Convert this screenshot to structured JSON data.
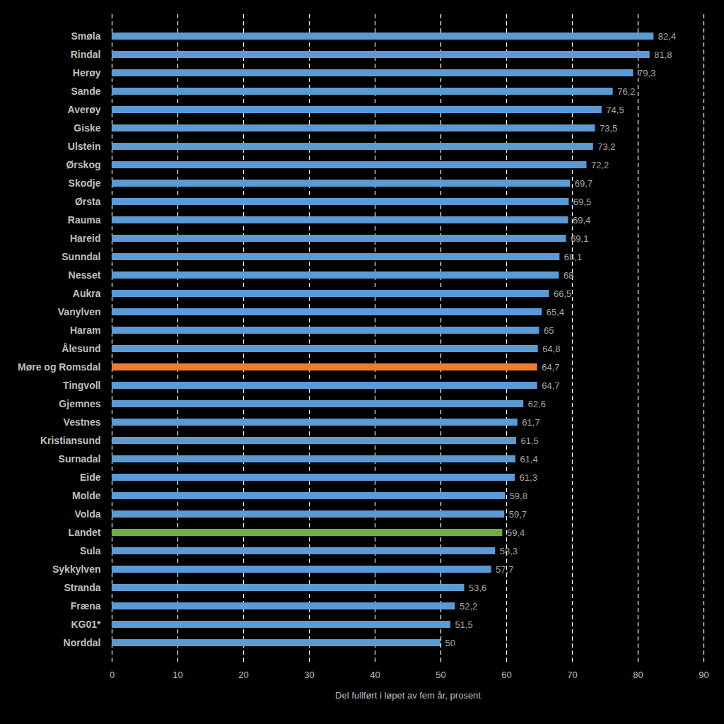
{
  "chart_data": {
    "type": "bar",
    "orientation": "horizontal",
    "xlabel": "Del fullført i løpet av fem år, prosent",
    "categories": [
      "Smøla",
      "Rindal",
      "Herøy",
      "Sande",
      "Averøy",
      "Giske",
      "Ulstein",
      "Ørskog",
      "Skodje",
      "Ørsta",
      "Rauma",
      "Hareid",
      "Sunndal",
      "Nesset",
      "Aukra",
      "Vanylven",
      "Haram",
      "Ålesund",
      "Møre og Romsdal",
      "Tingvoll",
      "Gjemnes",
      "Vestnes",
      "Kristiansund",
      "Surnadal",
      "Eide",
      "Molde",
      "Volda",
      "Landet",
      "Sula",
      "Sykkylven",
      "Stranda",
      "Fræna",
      "KG01*",
      "Norddal"
    ],
    "values": [
      82.4,
      81.8,
      79.3,
      76.2,
      74.5,
      73.5,
      73.2,
      72.2,
      69.7,
      69.5,
      69.4,
      69.1,
      68.1,
      68,
      66.5,
      65.4,
      65,
      64.8,
      64.7,
      64.7,
      62.6,
      61.7,
      61.5,
      61.4,
      61.3,
      59.8,
      59.7,
      59.4,
      58.3,
      57.7,
      53.6,
      52.2,
      51.5,
      50
    ],
    "value_labels": [
      "82,4",
      "81,8",
      "79,3",
      "76,2",
      "74,5",
      "73,5",
      "73,2",
      "72,2",
      "69,7",
      "69,5",
      "69,4",
      "69,1",
      "68,1",
      "68",
      "66,5",
      "65,4",
      "65",
      "64,8",
      "64,7",
      "64,7",
      "62,6",
      "61,7",
      "61,5",
      "61,4",
      "61,3",
      "59,8",
      "59,7",
      "59,4",
      "58,3",
      "57,7",
      "53,6",
      "52,2",
      "51,5",
      "50"
    ],
    "colors": [
      "#5b9bd5",
      "#5b9bd5",
      "#5b9bd5",
      "#5b9bd5",
      "#5b9bd5",
      "#5b9bd5",
      "#5b9bd5",
      "#5b9bd5",
      "#5b9bd5",
      "#5b9bd5",
      "#5b9bd5",
      "#5b9bd5",
      "#5b9bd5",
      "#5b9bd5",
      "#5b9bd5",
      "#5b9bd5",
      "#5b9bd5",
      "#5b9bd5",
      "#ed7d31",
      "#5b9bd5",
      "#5b9bd5",
      "#5b9bd5",
      "#5b9bd5",
      "#5b9bd5",
      "#5b9bd5",
      "#5b9bd5",
      "#5b9bd5",
      "#70ad47",
      "#5b9bd5",
      "#5b9bd5",
      "#5b9bd5",
      "#5b9bd5",
      "#5b9bd5",
      "#5b9bd5"
    ],
    "xlim": [
      0,
      90
    ],
    "xticks": [
      0,
      10,
      20,
      30,
      40,
      50,
      60,
      70,
      80,
      90
    ],
    "grid": true,
    "data_labels": true
  }
}
